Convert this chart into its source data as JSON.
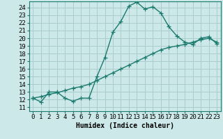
{
  "title": "",
  "xlabel": "Humidex (Indice chaleur)",
  "ylabel": "",
  "background_color": "#cce8e8",
  "grid_color": "#aacccc",
  "line_color": "#1a7a6e",
  "x_ticks": [
    0,
    1,
    2,
    3,
    4,
    5,
    6,
    7,
    8,
    9,
    10,
    11,
    12,
    13,
    14,
    15,
    16,
    17,
    18,
    19,
    20,
    21,
    22,
    23
  ],
  "y_ticks": [
    11,
    12,
    13,
    14,
    15,
    16,
    17,
    18,
    19,
    20,
    21,
    22,
    23,
    24
  ],
  "ylim": [
    10.5,
    24.8
  ],
  "xlim": [
    -0.5,
    23.5
  ],
  "curve1_x": [
    0,
    1,
    2,
    3,
    4,
    5,
    6,
    7,
    8,
    9,
    10,
    11,
    12,
    13,
    14,
    15,
    16,
    17,
    18,
    19,
    20,
    21,
    22,
    23
  ],
  "curve1_y": [
    12.2,
    11.7,
    13.0,
    13.0,
    12.2,
    11.8,
    12.2,
    12.2,
    15.0,
    17.5,
    20.8,
    22.2,
    24.2,
    24.7,
    23.8,
    24.1,
    23.3,
    21.5,
    20.3,
    19.5,
    19.2,
    20.0,
    20.2,
    19.3
  ],
  "curve2_x": [
    0,
    1,
    2,
    3,
    4,
    5,
    6,
    7,
    8,
    9,
    10,
    11,
    12,
    13,
    14,
    15,
    16,
    17,
    18,
    19,
    20,
    21,
    22,
    23
  ],
  "curve2_y": [
    12.2,
    12.4,
    12.7,
    12.9,
    13.2,
    13.5,
    13.7,
    14.0,
    14.5,
    15.0,
    15.5,
    16.0,
    16.5,
    17.0,
    17.5,
    18.0,
    18.5,
    18.8,
    19.0,
    19.2,
    19.5,
    19.8,
    20.0,
    19.5
  ],
  "marker": "+",
  "markersize": 4,
  "linewidth": 1.0,
  "axis_fontsize": 7,
  "tick_fontsize": 6.5
}
